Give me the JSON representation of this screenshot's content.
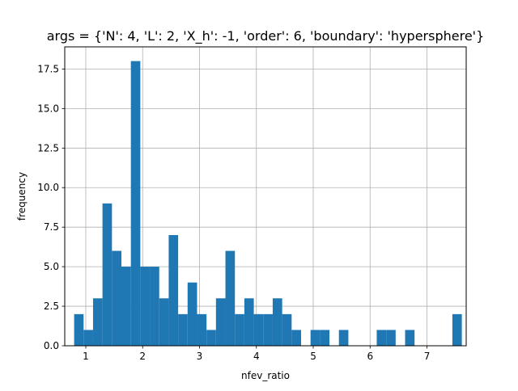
{
  "chart_data": {
    "type": "bar",
    "title": "args = {'N': 4, 'L': 2, 'X_h': -1, 'order': 6, 'boundary': 'hypersphere'}",
    "xlabel": "nfev_ratio",
    "ylabel": "frequency",
    "xlim": [
      0.63,
      7.69
    ],
    "ylim": [
      0,
      18.9
    ],
    "grid": true,
    "bar_color": "#1f77b4",
    "x_ticks": [
      1,
      2,
      3,
      4,
      5,
      6,
      7
    ],
    "y_ticks": [
      0.0,
      2.5,
      5.0,
      7.5,
      10.0,
      12.5,
      15.0,
      17.5
    ],
    "x_tick_labels": [
      "1",
      "2",
      "3",
      "4",
      "5",
      "6",
      "7"
    ],
    "y_tick_labels": [
      "0.0",
      "2.5",
      "5.0",
      "7.5",
      "10.0",
      "12.5",
      "15.0",
      "17.5"
    ],
    "bins": {
      "start": 0.795,
      "width": 0.1663,
      "values": [
        2,
        1,
        3,
        9,
        6,
        5,
        18,
        5,
        5,
        3,
        7,
        2,
        4,
        2,
        1,
        3,
        6,
        2,
        3,
        2,
        2,
        3,
        2,
        1,
        0,
        1,
        1,
        0,
        1,
        0,
        0,
        0,
        1,
        1,
        0,
        1,
        0,
        0,
        0,
        0,
        2
      ]
    }
  }
}
